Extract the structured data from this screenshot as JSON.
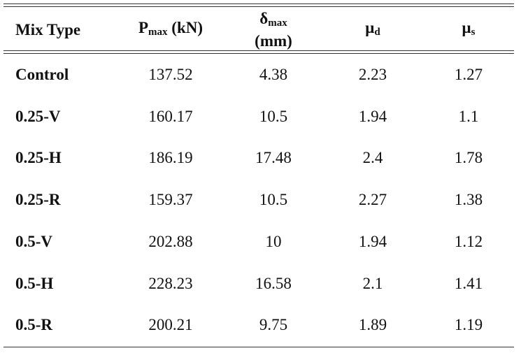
{
  "table": {
    "header": [
      {
        "text": "Mix Type"
      },
      {
        "symbol": "P",
        "subscript": "max",
        "unit": "(kN)"
      },
      {
        "symbol": "δ",
        "subscript": "max",
        "unit": "(mm)"
      },
      {
        "symbol": "μ",
        "subscript": "d"
      },
      {
        "symbol": "μ",
        "subscript": "s"
      }
    ],
    "rows": [
      [
        "Control",
        "137.52",
        "4.38",
        "2.23",
        "1.27"
      ],
      [
        "0.25-V",
        "160.17",
        "10.5",
        "1.94",
        "1.1"
      ],
      [
        "0.25-H",
        "186.19",
        "17.48",
        "2.4",
        "1.78"
      ],
      [
        "0.25-R",
        "159.37",
        "10.5",
        "2.27",
        "1.38"
      ],
      [
        "0.5-V",
        "202.88",
        "10",
        "1.94",
        "1.12"
      ],
      [
        "0.5-H",
        "228.23",
        "16.58",
        "2.1",
        "1.41"
      ],
      [
        "0.5-R",
        "200.21",
        "9.75",
        "1.89",
        "1.19"
      ]
    ]
  }
}
